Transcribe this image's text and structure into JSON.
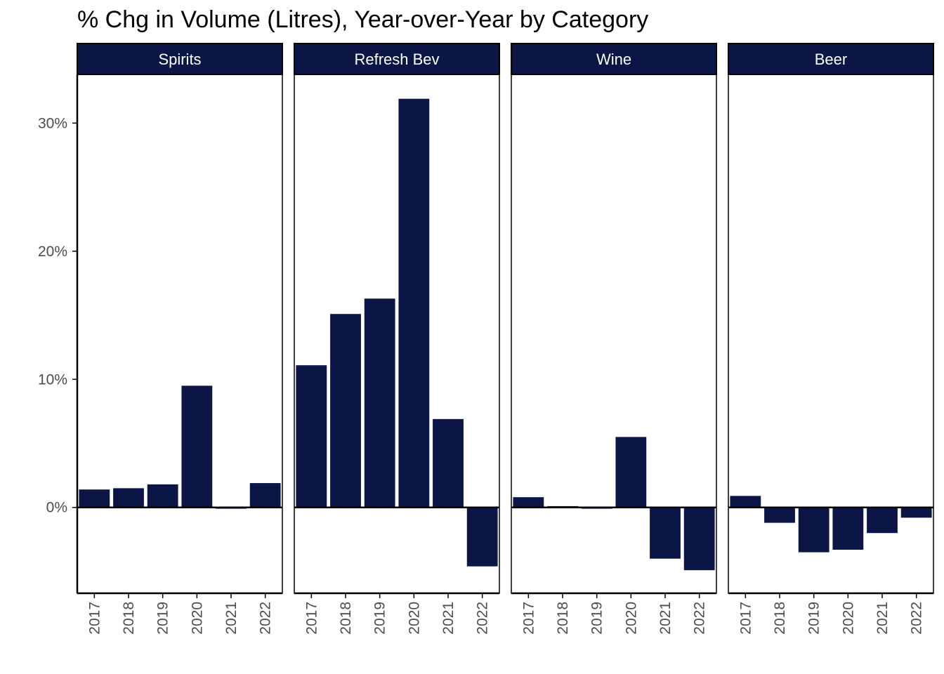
{
  "title": "% Chg in Volume (Litres), Year-over-Year by Category",
  "colors": {
    "bar": "#0b1647",
    "strip": "#0b1647",
    "strip_text": "#ffffff",
    "axis": "#000000",
    "tick_text": "#4d4d4d"
  },
  "chart_data": {
    "type": "bar",
    "title": "% Chg in Volume (Litres), Year-over-Year by Category",
    "xlabel": "",
    "ylabel": "",
    "categories": [
      "2017",
      "2018",
      "2019",
      "2020",
      "2021",
      "2022"
    ],
    "y_ticks": [
      0,
      10,
      20,
      30
    ],
    "y_tick_labels": [
      "0%",
      "10%",
      "20%",
      "30%"
    ],
    "ylim": [
      -6.7,
      33.8
    ],
    "grid": false,
    "facets": [
      {
        "name": "Spirits",
        "values": [
          1.4,
          1.5,
          1.8,
          9.5,
          -0.1,
          1.9
        ]
      },
      {
        "name": "Refresh Bev",
        "values": [
          11.1,
          15.1,
          16.3,
          31.9,
          6.9,
          -4.6
        ]
      },
      {
        "name": "Wine",
        "values": [
          0.8,
          0.1,
          -0.1,
          5.5,
          -4.0,
          -4.9
        ]
      },
      {
        "name": "Beer",
        "values": [
          0.9,
          -1.2,
          -3.5,
          -3.3,
          -2.0,
          -0.8
        ]
      }
    ]
  }
}
